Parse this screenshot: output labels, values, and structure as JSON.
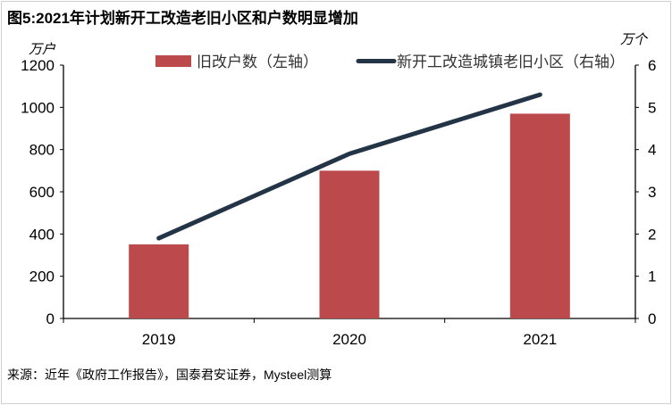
{
  "title": "图5:2021年计划新开工改造老旧小区和户数明显增加",
  "source": "来源：近年《政府工作报告》，国泰君安证券，Mysteel测算",
  "chart_data": {
    "type": "bar+line",
    "categories": [
      "2019",
      "2020",
      "2021"
    ],
    "series": [
      {
        "name": "旧改户数（左轴）",
        "type": "bar",
        "axis": "left",
        "color": "#BC4A4C",
        "values": [
          351,
          700,
          970
        ]
      },
      {
        "name": "新开工改造城镇老旧小区（右轴）",
        "type": "line",
        "axis": "right",
        "color": "#243447",
        "values": [
          1.9,
          3.9,
          5.3
        ]
      }
    ],
    "y_left": {
      "unit": "万户",
      "range": [
        0,
        1200
      ],
      "ticks": [
        "0",
        "200",
        "400",
        "600",
        "800",
        "1000",
        "1200"
      ]
    },
    "y_right": {
      "unit": "万个",
      "range": [
        0,
        6
      ],
      "ticks": [
        "0",
        "1",
        "2",
        "3",
        "4",
        "5",
        "6"
      ]
    },
    "grid": false,
    "legend_position": "top"
  }
}
